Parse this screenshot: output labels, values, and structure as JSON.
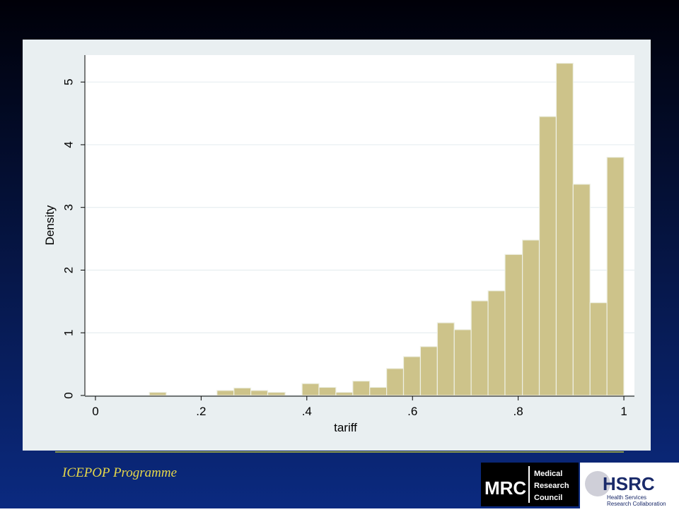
{
  "chart_data": {
    "type": "histogram",
    "x_label": "tariff",
    "y_label": "Density",
    "bins": [
      0.102,
      0.134,
      0.166,
      0.198,
      0.23,
      0.262,
      0.294,
      0.326,
      0.359,
      0.391,
      0.423,
      0.455,
      0.487,
      0.519,
      0.551,
      0.583,
      0.615,
      0.647,
      0.679,
      0.711,
      0.743,
      0.775,
      0.808,
      0.84,
      0.872,
      0.904,
      0.936,
      0.968,
      1.0
    ],
    "values": [
      0.05,
      0,
      0,
      0,
      0.08,
      0.12,
      0.08,
      0.05,
      0,
      0.19,
      0.13,
      0.05,
      0.23,
      0.13,
      0.43,
      0.62,
      0.78,
      1.16,
      1.05,
      1.51,
      1.67,
      2.25,
      2.48,
      4.45,
      5.3,
      3.37,
      1.48,
      3.8
    ],
    "color": "#cdc38a",
    "xlim": [
      -0.02,
      1.02
    ],
    "ylim": [
      0,
      5.43
    ],
    "xticks": [
      0,
      {
        "value": 0.2,
        "label": ".2"
      },
      {
        "value": 0.4,
        "label": ".4"
      },
      {
        "value": 0.6,
        "label": ".6"
      },
      {
        "value": 0.8,
        "label": ".8"
      },
      1
    ],
    "yticks": [
      0,
      1,
      2,
      3,
      4,
      5
    ],
    "grid": true
  },
  "footer": {
    "programme": "ICEPOP Programme",
    "mrc_logo": {
      "short": "MRC",
      "lines": [
        "Medical",
        "Research",
        "Council"
      ]
    },
    "hsrc_logo": {
      "short": "HSRC",
      "lines": [
        "Health Services",
        "Research Collaboration"
      ]
    }
  }
}
